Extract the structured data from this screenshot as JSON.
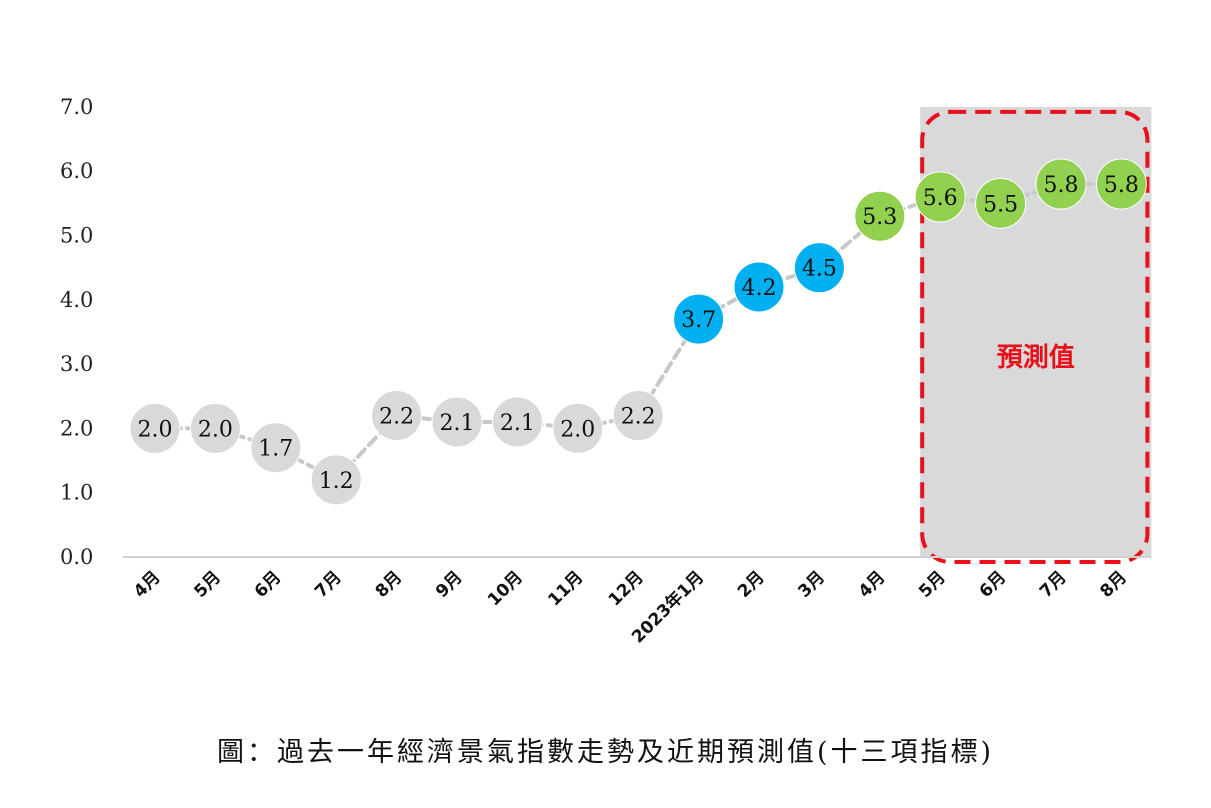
{
  "caption": "圖：過去一年經濟景氣指數走勢及近期預測值(十三項指標)",
  "chart_data": {
    "type": "line",
    "title": "",
    "xlabel": "",
    "ylabel": "",
    "ylim": [
      0,
      7
    ],
    "yticks": [
      "0.0",
      "1.0",
      "2.0",
      "3.0",
      "4.0",
      "5.0",
      "6.0",
      "7.0"
    ],
    "categories": [
      "4月",
      "5月",
      "6月",
      "7月",
      "8月",
      "9月",
      "10月",
      "11月",
      "12月",
      "2023年1月",
      "2月",
      "3月",
      "4月",
      "5月",
      "6月",
      "7月",
      "8月"
    ],
    "values": [
      2.0,
      2.0,
      1.7,
      1.2,
      2.2,
      2.1,
      2.1,
      2.0,
      2.2,
      3.7,
      4.2,
      4.5,
      5.3,
      5.6,
      5.5,
      5.8,
      5.8
    ],
    "value_labels": [
      "2.0",
      "2.0",
      "1.7",
      "1.2",
      "2.2",
      "2.1",
      "2.1",
      "2.0",
      "2.2",
      "3.7",
      "4.2",
      "4.5",
      "5.3",
      "5.6",
      "5.5",
      "5.8",
      "5.8"
    ],
    "point_colors": [
      "#d9d9d9",
      "#d9d9d9",
      "#d9d9d9",
      "#d9d9d9",
      "#d9d9d9",
      "#d9d9d9",
      "#d9d9d9",
      "#d9d9d9",
      "#d9d9d9",
      "#00b0f0",
      "#00b0f0",
      "#00b0f0",
      "#92d050",
      "#92d050",
      "#92d050",
      "#92d050",
      "#92d050"
    ],
    "forecast_region": {
      "from_category": "5月",
      "to_category": "8月",
      "label": "預測值",
      "shade_color": "#d9d9d9",
      "border_color": "#e8101a"
    },
    "line_color": "#c8c8c8",
    "grid": false
  }
}
